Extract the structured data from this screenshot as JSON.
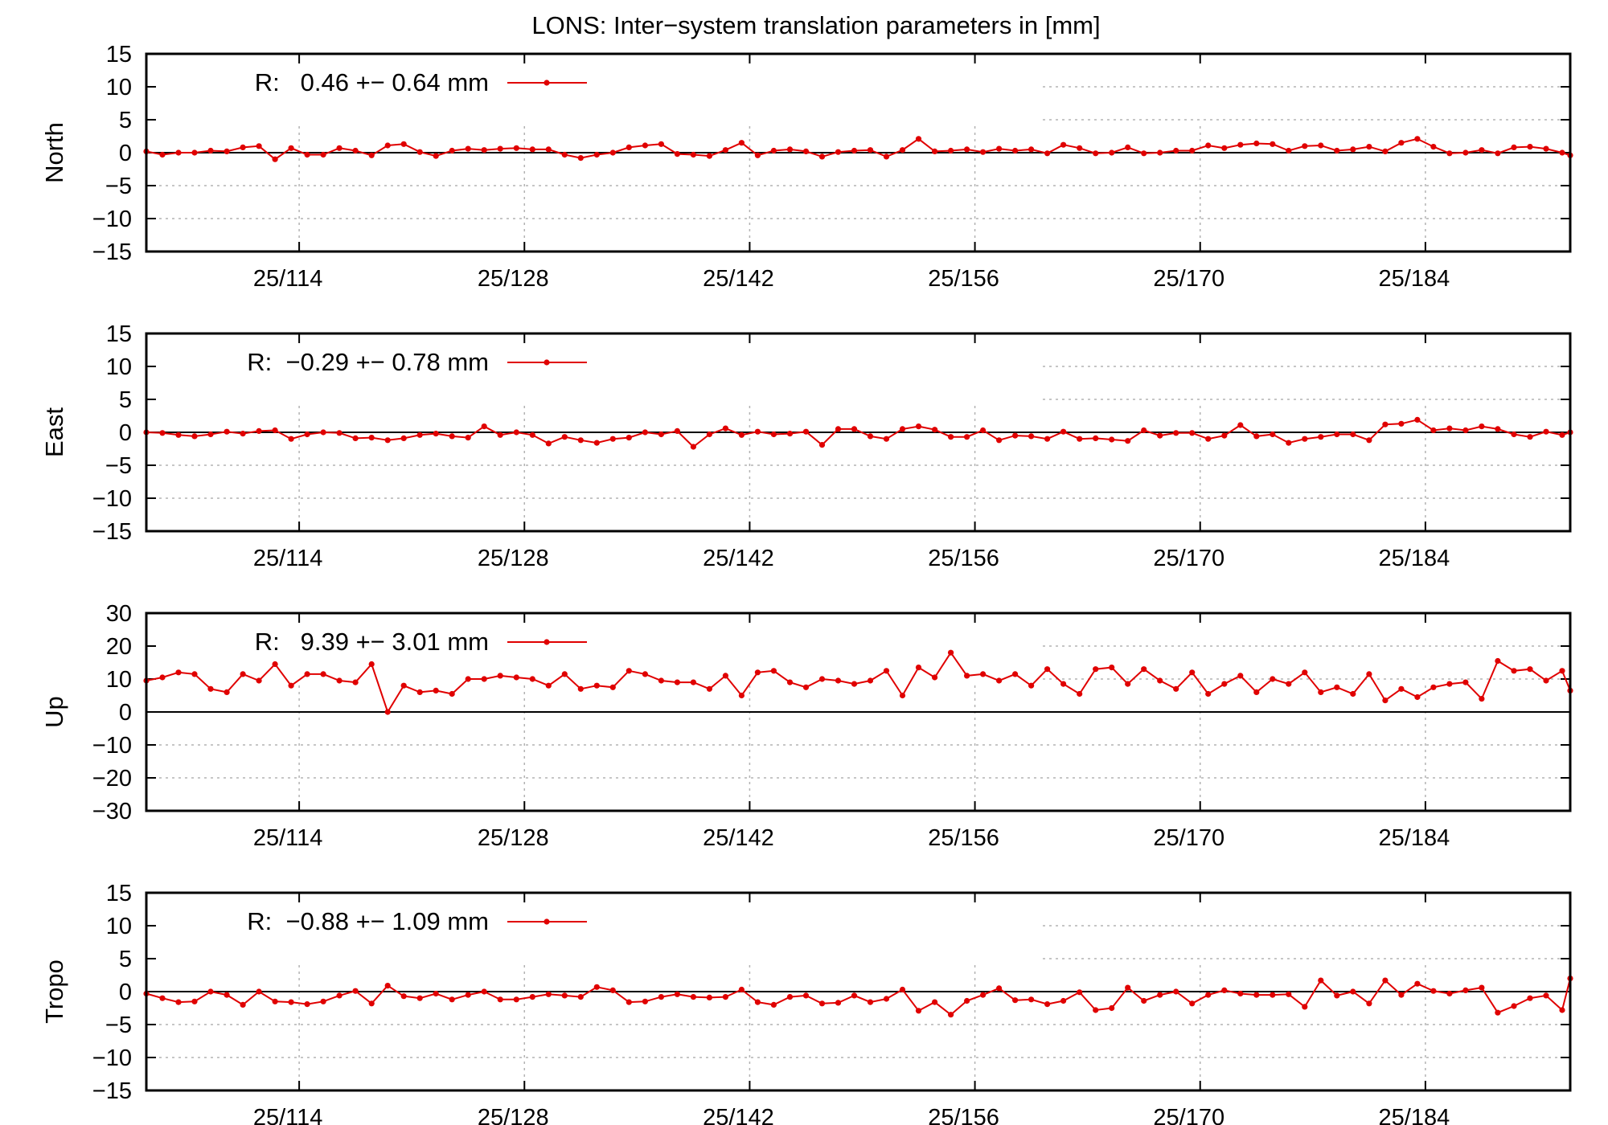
{
  "figure": {
    "title": "LONS: Inter−system translation parameters in [mm]"
  },
  "colors": {
    "series": "#e00000",
    "axis": "#000000",
    "grid": "#b3b3b3",
    "background": "#ffffff"
  },
  "chart_data": [
    {
      "type": "line",
      "ylabel": "North",
      "legend": "R:   0.46 +− 0.64 mm",
      "legend_position": "top-left",
      "ylim": [
        -15,
        15
      ],
      "yticks": [
        15,
        10,
        5,
        0,
        -5,
        -10,
        -15
      ],
      "ytick_labels": [
        "15",
        "10",
        "5",
        "0",
        "−5",
        "−10",
        "−15"
      ],
      "xlim": [
        104.5,
        193.0
      ],
      "xticks": [
        114,
        128,
        142,
        156,
        170,
        184
      ],
      "xtick_labels": [
        "25/114",
        "25/128",
        "25/142",
        "25/156",
        "25/170",
        "25/184"
      ],
      "grid": true,
      "x": [
        104.5,
        105.5,
        106.5,
        107.5,
        108.5,
        109.5,
        110.5,
        111.5,
        112.5,
        113.5,
        114.5,
        115.5,
        116.5,
        117.5,
        118.5,
        119.5,
        120.5,
        121.5,
        122.5,
        123.5,
        124.5,
        125.5,
        126.5,
        127.5,
        128.5,
        129.5,
        130.5,
        131.5,
        132.5,
        133.5,
        134.5,
        135.5,
        136.5,
        137.5,
        138.5,
        139.5,
        140.5,
        141.5,
        142.5,
        143.5,
        144.5,
        145.5,
        146.5,
        147.5,
        148.5,
        149.5,
        150.5,
        151.5,
        152.5,
        153.5,
        154.5,
        155.5,
        156.5,
        157.5,
        158.5,
        159.5,
        160.5,
        161.5,
        162.5,
        163.5,
        164.5,
        165.5,
        166.5,
        167.5,
        168.5,
        169.5,
        170.5,
        171.5,
        172.5,
        173.5,
        174.5,
        175.5,
        176.5,
        177.5,
        178.5,
        179.5,
        180.5,
        181.5,
        182.5,
        183.5,
        184.5,
        185.5,
        186.5,
        187.5,
        188.5,
        189.5,
        190.5,
        191.5,
        192.5,
        193.0
      ],
      "values": [
        0.2,
        -0.3,
        0.0,
        0.0,
        0.3,
        0.2,
        0.8,
        1.0,
        -1.0,
        0.7,
        -0.3,
        -0.3,
        0.7,
        0.3,
        -0.4,
        1.1,
        1.3,
        0.1,
        -0.5,
        0.3,
        0.6,
        0.4,
        0.6,
        0.7,
        0.5,
        0.5,
        -0.3,
        -0.8,
        -0.3,
        0.0,
        0.8,
        1.1,
        1.3,
        -0.2,
        -0.3,
        -0.5,
        0.4,
        1.5,
        -0.4,
        0.3,
        0.5,
        0.2,
        -0.6,
        0.1,
        0.3,
        0.4,
        -0.6,
        0.4,
        2.1,
        0.2,
        0.3,
        0.5,
        0.1,
        0.6,
        0.3,
        0.5,
        -0.1,
        1.2,
        0.7,
        -0.1,
        0.0,
        0.8,
        -0.1,
        0.0,
        0.3,
        0.3,
        1.1,
        0.7,
        1.2,
        1.4,
        1.3,
        0.3,
        1.0,
        1.1,
        0.3,
        0.5,
        0.9,
        0.2,
        1.5,
        2.1,
        0.9,
        -0.1,
        0.0,
        0.4,
        -0.1,
        0.8,
        0.9,
        0.6,
        0.0,
        -0.4
      ]
    },
    {
      "type": "line",
      "ylabel": "East",
      "legend": "R:  −0.29 +− 0.78 mm",
      "legend_position": "top-left",
      "ylim": [
        -15,
        15
      ],
      "yticks": [
        15,
        10,
        5,
        0,
        -5,
        -10,
        -15
      ],
      "ytick_labels": [
        "15",
        "10",
        "5",
        "0",
        "−5",
        "−10",
        "−15"
      ],
      "xlim": [
        104.5,
        193.0
      ],
      "xticks": [
        114,
        128,
        142,
        156,
        170,
        184
      ],
      "xtick_labels": [
        "25/114",
        "25/128",
        "25/142",
        "25/156",
        "25/170",
        "25/184"
      ],
      "grid": true,
      "x": [
        104.5,
        105.5,
        106.5,
        107.5,
        108.5,
        109.5,
        110.5,
        111.5,
        112.5,
        113.5,
        114.5,
        115.5,
        116.5,
        117.5,
        118.5,
        119.5,
        120.5,
        121.5,
        122.5,
        123.5,
        124.5,
        125.5,
        126.5,
        127.5,
        128.5,
        129.5,
        130.5,
        131.5,
        132.5,
        133.5,
        134.5,
        135.5,
        136.5,
        137.5,
        138.5,
        139.5,
        140.5,
        141.5,
        142.5,
        143.5,
        144.5,
        145.5,
        146.5,
        147.5,
        148.5,
        149.5,
        150.5,
        151.5,
        152.5,
        153.5,
        154.5,
        155.5,
        156.5,
        157.5,
        158.5,
        159.5,
        160.5,
        161.5,
        162.5,
        163.5,
        164.5,
        165.5,
        166.5,
        167.5,
        168.5,
        169.5,
        170.5,
        171.5,
        172.5,
        173.5,
        174.5,
        175.5,
        176.5,
        177.5,
        178.5,
        179.5,
        180.5,
        181.5,
        182.5,
        183.5,
        184.5,
        185.5,
        186.5,
        187.5,
        188.5,
        189.5,
        190.5,
        191.5,
        192.5,
        193.0
      ],
      "values": [
        0.0,
        -0.1,
        -0.4,
        -0.6,
        -0.3,
        0.1,
        -0.2,
        0.2,
        0.3,
        -1.0,
        -0.3,
        0.0,
        -0.1,
        -0.9,
        -0.8,
        -1.2,
        -0.9,
        -0.4,
        -0.2,
        -0.6,
        -0.8,
        0.9,
        -0.4,
        0.0,
        -0.4,
        -1.7,
        -0.7,
        -1.2,
        -1.6,
        -1.0,
        -0.8,
        0.0,
        -0.3,
        0.2,
        -2.2,
        -0.3,
        0.6,
        -0.4,
        0.1,
        -0.3,
        -0.2,
        0.1,
        -1.9,
        0.5,
        0.5,
        -0.6,
        -1.0,
        0.5,
        0.9,
        0.4,
        -0.7,
        -0.7,
        0.3,
        -1.2,
        -0.5,
        -0.6,
        -1.0,
        0.1,
        -1.0,
        -0.9,
        -1.1,
        -1.3,
        0.3,
        -0.5,
        -0.1,
        -0.1,
        -1.0,
        -0.5,
        1.1,
        -0.6,
        -0.3,
        -1.6,
        -1.0,
        -0.7,
        -0.3,
        -0.3,
        -1.2,
        1.2,
        1.3,
        1.9,
        0.3,
        0.6,
        0.3,
        0.9,
        0.5,
        -0.3,
        -0.7,
        0.1,
        -0.4,
        0.0
      ]
    },
    {
      "type": "line",
      "ylabel": "Up",
      "legend": "R:   9.39 +− 3.01 mm",
      "legend_position": "top-left",
      "ylim": [
        -30,
        30
      ],
      "yticks": [
        30,
        20,
        10,
        0,
        -10,
        -20,
        -30
      ],
      "ytick_labels": [
        "30",
        "20",
        "10",
        "0",
        "−10",
        "−20",
        "−30"
      ],
      "xlim": [
        104.5,
        193.0
      ],
      "xticks": [
        114,
        128,
        142,
        156,
        170,
        184
      ],
      "xtick_labels": [
        "25/114",
        "25/128",
        "25/142",
        "25/156",
        "25/170",
        "25/184"
      ],
      "grid": true,
      "x": [
        104.5,
        105.5,
        106.5,
        107.5,
        108.5,
        109.5,
        110.5,
        111.5,
        112.5,
        113.5,
        114.5,
        115.5,
        116.5,
        117.5,
        118.5,
        119.5,
        120.5,
        121.5,
        122.5,
        123.5,
        124.5,
        125.5,
        126.5,
        127.5,
        128.5,
        129.5,
        130.5,
        131.5,
        132.5,
        133.5,
        134.5,
        135.5,
        136.5,
        137.5,
        138.5,
        139.5,
        140.5,
        141.5,
        142.5,
        143.5,
        144.5,
        145.5,
        146.5,
        147.5,
        148.5,
        149.5,
        150.5,
        151.5,
        152.5,
        153.5,
        154.5,
        155.5,
        156.5,
        157.5,
        158.5,
        159.5,
        160.5,
        161.5,
        162.5,
        163.5,
        164.5,
        165.5,
        166.5,
        167.5,
        168.5,
        169.5,
        170.5,
        171.5,
        172.5,
        173.5,
        174.5,
        175.5,
        176.5,
        177.5,
        178.5,
        179.5,
        180.5,
        181.5,
        182.5,
        183.5,
        184.5,
        185.5,
        186.5,
        187.5,
        188.5,
        189.5,
        190.5,
        191.5,
        192.5,
        193.0
      ],
      "values": [
        9.5,
        10.5,
        12.0,
        11.5,
        7.0,
        6.0,
        11.5,
        9.5,
        14.5,
        8.0,
        11.5,
        11.5,
        9.5,
        9.0,
        14.5,
        0.0,
        8.0,
        6.0,
        6.5,
        5.5,
        10.0,
        10.0,
        11.0,
        10.5,
        10.0,
        8.0,
        11.5,
        7.0,
        8.0,
        7.5,
        12.5,
        11.5,
        9.5,
        9.0,
        9.0,
        7.0,
        11.0,
        5.0,
        12.0,
        12.5,
        9.0,
        7.5,
        10.0,
        9.5,
        8.5,
        9.5,
        12.5,
        5.0,
        13.5,
        10.5,
        18.0,
        11.0,
        11.5,
        9.5,
        11.5,
        8.0,
        13.0,
        8.5,
        5.5,
        13.0,
        13.5,
        8.5,
        13.0,
        9.5,
        7.0,
        12.0,
        5.5,
        8.5,
        11.0,
        6.0,
        10.0,
        8.5,
        12.0,
        6.0,
        7.5,
        5.5,
        11.5,
        3.5,
        7.0,
        4.5,
        7.5,
        8.5,
        9.0,
        4.0,
        15.5,
        12.5,
        13.0,
        9.5,
        12.5,
        6.5
      ]
    },
    {
      "type": "line",
      "ylabel": "Tropo",
      "legend": "R:  −0.88 +− 1.09 mm",
      "legend_position": "top-left",
      "ylim": [
        -15,
        15
      ],
      "yticks": [
        15,
        10,
        5,
        0,
        -5,
        -10,
        -15
      ],
      "ytick_labels": [
        "15",
        "10",
        "5",
        "0",
        "−5",
        "−10",
        "−15"
      ],
      "xlim": [
        104.5,
        193.0
      ],
      "xticks": [
        114,
        128,
        142,
        156,
        170,
        184
      ],
      "xtick_labels": [
        "25/114",
        "25/128",
        "25/142",
        "25/156",
        "25/170",
        "25/184"
      ],
      "grid": true,
      "x": [
        104.5,
        105.5,
        106.5,
        107.5,
        108.5,
        109.5,
        110.5,
        111.5,
        112.5,
        113.5,
        114.5,
        115.5,
        116.5,
        117.5,
        118.5,
        119.5,
        120.5,
        121.5,
        122.5,
        123.5,
        124.5,
        125.5,
        126.5,
        127.5,
        128.5,
        129.5,
        130.5,
        131.5,
        132.5,
        133.5,
        134.5,
        135.5,
        136.5,
        137.5,
        138.5,
        139.5,
        140.5,
        141.5,
        142.5,
        143.5,
        144.5,
        145.5,
        146.5,
        147.5,
        148.5,
        149.5,
        150.5,
        151.5,
        152.5,
        153.5,
        154.5,
        155.5,
        156.5,
        157.5,
        158.5,
        159.5,
        160.5,
        161.5,
        162.5,
        163.5,
        164.5,
        165.5,
        166.5,
        167.5,
        168.5,
        169.5,
        170.5,
        171.5,
        172.5,
        173.5,
        174.5,
        175.5,
        176.5,
        177.5,
        178.5,
        179.5,
        180.5,
        181.5,
        182.5,
        183.5,
        184.5,
        185.5,
        186.5,
        187.5,
        188.5,
        189.5,
        190.5,
        191.5,
        192.5,
        193.0
      ],
      "values": [
        -0.3,
        -1.0,
        -1.6,
        -1.5,
        0.0,
        -0.5,
        -2.0,
        0.0,
        -1.5,
        -1.6,
        -1.9,
        -1.5,
        -0.6,
        0.1,
        -1.8,
        0.9,
        -0.7,
        -1.0,
        -0.3,
        -1.2,
        -0.5,
        0.0,
        -1.2,
        -1.2,
        -0.8,
        -0.4,
        -0.6,
        -0.8,
        0.7,
        0.2,
        -1.6,
        -1.5,
        -0.8,
        -0.4,
        -0.8,
        -0.9,
        -0.8,
        0.3,
        -1.6,
        -2.0,
        -0.8,
        -0.6,
        -1.8,
        -1.7,
        -0.6,
        -1.6,
        -1.1,
        0.3,
        -2.9,
        -1.6,
        -3.5,
        -1.4,
        -0.5,
        0.5,
        -1.3,
        -1.2,
        -1.9,
        -1.4,
        -0.1,
        -2.8,
        -2.5,
        0.6,
        -1.4,
        -0.5,
        0.0,
        -1.8,
        -0.5,
        0.2,
        -0.3,
        -0.5,
        -0.5,
        -0.4,
        -2.3,
        1.7,
        -0.6,
        0.0,
        -1.8,
        1.7,
        -0.5,
        1.2,
        0.1,
        -0.3,
        0.2,
        0.6,
        -3.2,
        -2.2,
        -1.0,
        -0.6,
        -2.8,
        2.0
      ]
    }
  ]
}
